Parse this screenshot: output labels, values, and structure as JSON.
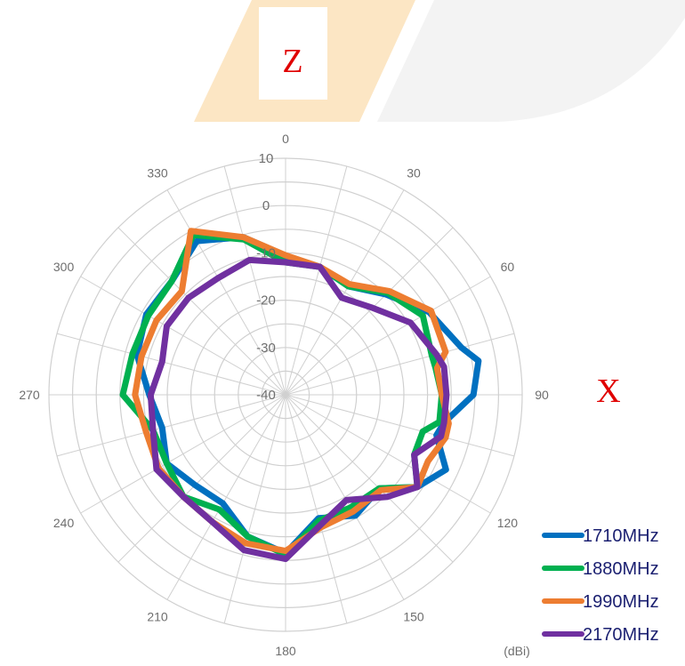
{
  "figure": {
    "z_label": "Z",
    "x_label": "X"
  },
  "chart_data": {
    "type": "polar-line",
    "title": "",
    "unit_label": "(dBi)",
    "angle_ticks": [
      0,
      30,
      60,
      90,
      120,
      150,
      180,
      210,
      240,
      270,
      300,
      330
    ],
    "angle_step_deg": 15,
    "radial_ticks": [
      -40,
      -30,
      -20,
      -10,
      0,
      10
    ],
    "radial_tick_labels": [
      "-40",
      "-30",
      "-20",
      "-10",
      "0",
      "10"
    ],
    "r_range": [
      -40,
      10
    ],
    "grid": true,
    "legend_position": "bottom-right",
    "theta": [
      0,
      15,
      30,
      45,
      60,
      75,
      80,
      90,
      100,
      105,
      115,
      125,
      135,
      150,
      165,
      180,
      195,
      210,
      225,
      240,
      255,
      270,
      285,
      300,
      315,
      330,
      345
    ],
    "series": [
      {
        "name": "1710MHz",
        "color": "#0070c0",
        "values": [
          -10.6,
          -12,
          -13.5,
          -10,
          -5,
          -1.5,
          1.4,
          -0.3,
          -6,
          -7,
          -2.6,
          -6,
          -12,
          -10.5,
          -13,
          -6.5,
          -9,
          -13.5,
          -13,
          -11,
          -13,
          -11.2,
          -7.5,
          -6,
          -6,
          -2.5,
          -5.5
        ]
      },
      {
        "name": "1880MHz",
        "color": "#00b050",
        "values": [
          -12,
          -12,
          -13.5,
          -9.5,
          -6.5,
          -8,
          -7.8,
          -7,
          -7,
          -10,
          -10,
          -6,
          -12,
          -12.5,
          -12.5,
          -6.2,
          -9,
          -12,
          -9.5,
          -11,
          -11,
          -5.6,
          -6.5,
          -6.5,
          -6,
          -1,
          -6
        ]
      },
      {
        "name": "1990MHz",
        "color": "#ed7d31",
        "values": [
          -10.5,
          -12,
          -13,
          -9,
          -4.5,
          -5,
          -7.5,
          -7,
          -5,
          -5,
          -6.8,
          -6,
          -11.5,
          -11.5,
          -11,
          -7,
          -7.5,
          -9,
          -9.5,
          -9,
          -9.5,
          -8.2,
          -8.5,
          -8.5,
          -9,
          0,
          -5.5
        ]
      },
      {
        "name": "2170MHz",
        "color": "#7030a0",
        "values": [
          -12,
          -12,
          -16.3,
          -14,
          -9.5,
          -7,
          -6,
          -6,
          -6,
          -6,
          -10,
          -6,
          -9.5,
          -14.3,
          -11.5,
          -5.3,
          -6,
          -9,
          -9.5,
          -8.5,
          -11,
          -11.5,
          -13,
          -11,
          -11,
          -11.5,
          -10.5
        ]
      }
    ]
  }
}
